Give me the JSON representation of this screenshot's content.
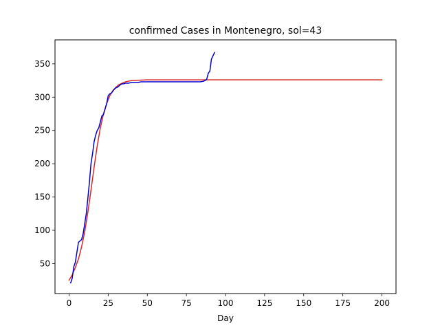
{
  "chart_data": {
    "type": "line",
    "title": "confirmed Cases in Montenegro, sol=43",
    "xlabel": "Day",
    "ylabel": "",
    "xlim": [
      -9,
      209
    ],
    "ylim": [
      5,
      386
    ],
    "xticks": [
      0,
      25,
      50,
      75,
      100,
      125,
      150,
      175,
      200
    ],
    "yticks": [
      50,
      100,
      150,
      200,
      250,
      300,
      350
    ],
    "grid": false,
    "series": [
      {
        "color": "#d62728",
        "x": [
          0,
          2,
          4,
          6,
          8,
          10,
          12,
          14,
          16,
          18,
          20,
          22,
          24,
          26,
          28,
          30,
          32,
          34,
          36,
          38,
          40,
          45,
          50,
          60,
          80,
          100,
          150,
          200
        ],
        "y": [
          25,
          33,
          44,
          57,
          75,
          98,
          127,
          160,
          195,
          227,
          254,
          275,
          290,
          302,
          310,
          315,
          319,
          321,
          323,
          324,
          325,
          325.5,
          326,
          326,
          326,
          326,
          326,
          326
        ]
      },
      {
        "color": "#0000cd",
        "x": [
          1,
          2,
          3,
          4,
          5,
          6,
          7,
          8,
          9,
          10,
          11,
          12,
          13,
          14,
          15,
          16,
          17,
          18,
          19,
          20,
          21,
          22,
          23,
          24,
          25,
          26,
          27,
          28,
          29,
          30,
          31,
          32,
          33,
          34,
          35,
          36,
          38,
          40,
          42,
          44,
          46,
          50,
          60,
          70,
          80,
          84,
          86,
          87,
          88,
          89,
          90,
          91,
          92,
          93
        ],
        "y": [
          21,
          28,
          45,
          52,
          67,
          82,
          84,
          86,
          95,
          110,
          125,
          148,
          172,
          200,
          215,
          233,
          243,
          250,
          254,
          263,
          272,
          274,
          282,
          290,
          302,
          305,
          306,
          309,
          312,
          314,
          315,
          317,
          319,
          320,
          320,
          321,
          321,
          322,
          322,
          322,
          323,
          323,
          323,
          323,
          323,
          323,
          324,
          325,
          327,
          336,
          339,
          357,
          362,
          367
        ]
      }
    ]
  }
}
